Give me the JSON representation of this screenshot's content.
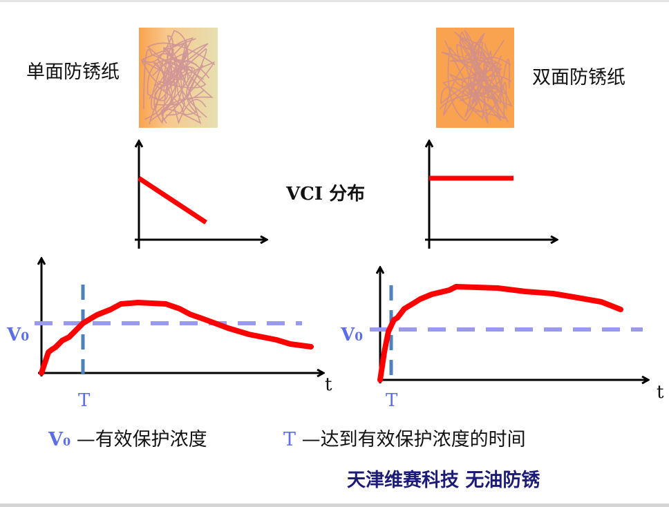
{
  "labels": {
    "single_side": "单面防锈纸",
    "double_side": "双面防锈纸",
    "vci_distribution": "VCI 分布",
    "v0_symbol": "V",
    "v0_subscript": "0",
    "t_symbol": "T",
    "time_axis": "t"
  },
  "legend": {
    "v0_desc": "—有效保护浓度",
    "t_desc": "—达到有效保护浓度的时间"
  },
  "footer": "天津维赛科技 无油防锈",
  "colors": {
    "curve": "#ff0000",
    "v0_line": "#9999ee",
    "t_line": "#4f81bd",
    "label_blue": "#5b6ee8",
    "footer": "#1c1c78",
    "paper_orange": "#f9a24f"
  }
}
